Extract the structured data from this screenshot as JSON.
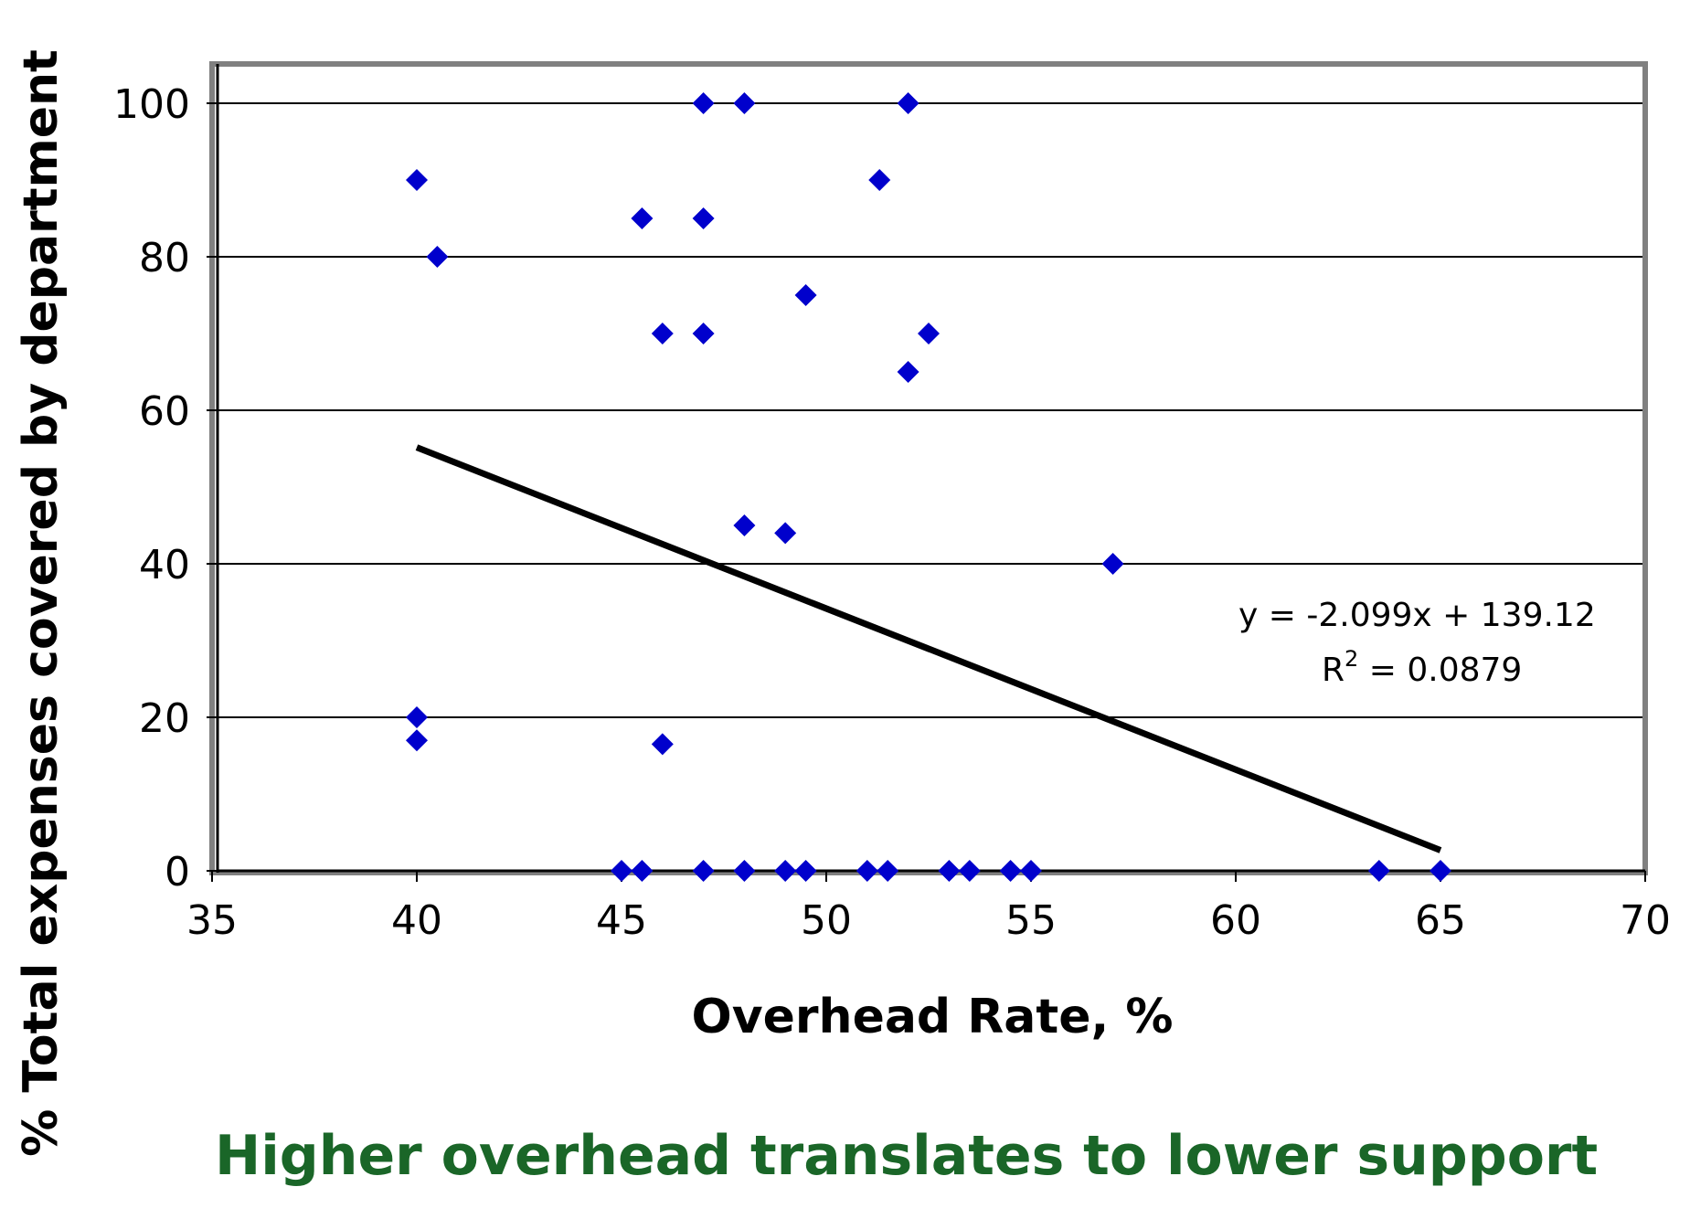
{
  "chart_data": {
    "type": "scatter",
    "xlabel": "Overhead Rate, %",
    "ylabel": "% Total expenses covered by department",
    "xlim": [
      35,
      70
    ],
    "ylim": [
      0,
      100
    ],
    "x_ticks": [
      35,
      40,
      45,
      50,
      55,
      60,
      65,
      70
    ],
    "y_ticks": [
      0,
      20,
      40,
      60,
      80,
      100
    ],
    "grid": "horizontal",
    "series": [
      {
        "points": [
          [
            40,
            90
          ],
          [
            40.5,
            80
          ],
          [
            40,
            20
          ],
          [
            40,
            17
          ],
          [
            45.5,
            85
          ],
          [
            46,
            70
          ],
          [
            46,
            16.5
          ],
          [
            47,
            100
          ],
          [
            47,
            85
          ],
          [
            47,
            70
          ],
          [
            48,
            100
          ],
          [
            48,
            45
          ],
          [
            49,
            44
          ],
          [
            49.5,
            75
          ],
          [
            51.3,
            90
          ],
          [
            52,
            100
          ],
          [
            52,
            65
          ],
          [
            52.5,
            70
          ],
          [
            57,
            40
          ],
          [
            45,
            0
          ],
          [
            45.5,
            0
          ],
          [
            47,
            0
          ],
          [
            48,
            0
          ],
          [
            49,
            0
          ],
          [
            49.5,
            0
          ],
          [
            51,
            0
          ],
          [
            51.5,
            0
          ],
          [
            53,
            0
          ],
          [
            53.5,
            0
          ],
          [
            54.5,
            0
          ],
          [
            55,
            0
          ],
          [
            63.5,
            0
          ],
          [
            65,
            0
          ]
        ],
        "color": "#0000CC",
        "marker": "diamond"
      }
    ],
    "trendline": {
      "type": "linear",
      "slope": -2.099,
      "intercept": 139.12,
      "x_range": [
        40,
        65
      ],
      "color": "#000000",
      "equation": "y = -2.099x + 139.12",
      "r2_label": "R",
      "r2_sup": "2",
      "r2_value": " = 0.0879"
    },
    "frame_color": "#808080",
    "caption": "Higher overhead translates to lower support",
    "caption_color": "#1A6628"
  }
}
